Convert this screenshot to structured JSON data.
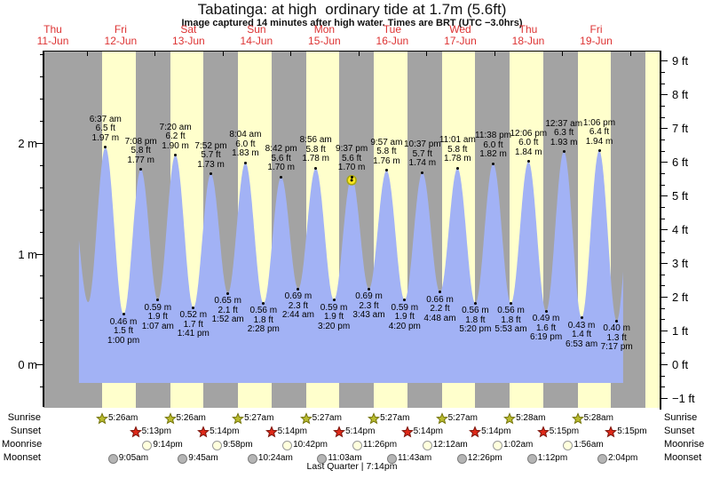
{
  "chart_data": {
    "type": "area",
    "title": "Tabatinga: at high  ordinary tide at 1.7m (5.6ft)",
    "subtitle": "Image captured 14 minutes after high water. Times are BRT (UTC −3.0hrs)",
    "xlabel": "",
    "ylabel_left": "m",
    "ylabel_right": "ft",
    "y_left_labels": [
      "0 m",
      "1 m",
      "2 m"
    ],
    "y_right_labels": [
      "−1 ft",
      "0 ft",
      "1 ft",
      "2 ft",
      "3 ft",
      "4 ft",
      "5 ft",
      "6 ft",
      "7 ft",
      "8 ft",
      "9 ft"
    ],
    "y_left_range_m": [
      -0.25,
      2.85
    ],
    "grid": "off",
    "legend": "none",
    "days": [
      {
        "weekday": "Thu",
        "date": "11-Jun"
      },
      {
        "weekday": "Fri",
        "date": "12-Jun"
      },
      {
        "weekday": "Sat",
        "date": "13-Jun"
      },
      {
        "weekday": "Sun",
        "date": "14-Jun"
      },
      {
        "weekday": "Mon",
        "date": "15-Jun"
      },
      {
        "weekday": "Tue",
        "date": "16-Jun"
      },
      {
        "weekday": "Wed",
        "date": "17-Jun"
      },
      {
        "weekday": "Thu",
        "date": "18-Jun"
      },
      {
        "weekday": "Fri",
        "date": "19-Jun"
      }
    ],
    "extremes": [
      {
        "type": "high",
        "day": 1,
        "time": "6:37 am",
        "ft": "6.5 ft",
        "m": "1.97 m"
      },
      {
        "type": "low",
        "day": 1,
        "time": "1:00 pm",
        "ft": "1.5 ft",
        "m": "0.46 m"
      },
      {
        "type": "high",
        "day": 1,
        "time": "7:08 pm",
        "ft": "5.8 ft",
        "m": "1.77 m"
      },
      {
        "type": "low",
        "day": 2,
        "time": "1:07 am",
        "ft": "1.9 ft",
        "m": "0.59 m"
      },
      {
        "type": "high",
        "day": 2,
        "time": "7:20 am",
        "ft": "6.2 ft",
        "m": "1.90 m"
      },
      {
        "type": "low",
        "day": 2,
        "time": "1:41 pm",
        "ft": "1.7 ft",
        "m": "0.52 m"
      },
      {
        "type": "high",
        "day": 2,
        "time": "7:52 pm",
        "ft": "5.7 ft",
        "m": "1.73 m"
      },
      {
        "type": "low",
        "day": 3,
        "time": "1:52 am",
        "ft": "2.1 ft",
        "m": "0.65 m"
      },
      {
        "type": "high",
        "day": 3,
        "time": "8:04 am",
        "ft": "6.0 ft",
        "m": "1.83 m"
      },
      {
        "type": "low",
        "day": 3,
        "time": "2:28 pm",
        "ft": "1.8 ft",
        "m": "0.56 m"
      },
      {
        "type": "high",
        "day": 3,
        "time": "8:42 pm",
        "ft": "5.6 ft",
        "m": "1.70 m"
      },
      {
        "type": "low",
        "day": 4,
        "time": "2:44 am",
        "ft": "2.3 ft",
        "m": "0.69 m"
      },
      {
        "type": "high",
        "day": 4,
        "time": "8:56 am",
        "ft": "5.8 ft",
        "m": "1.78 m"
      },
      {
        "type": "low",
        "day": 4,
        "time": "3:20 pm",
        "ft": "1.9 ft",
        "m": "0.59 m"
      },
      {
        "type": "high",
        "day": 4,
        "time": "9:37 pm",
        "ft": "5.6 ft",
        "m": "1.70 m",
        "current": true
      },
      {
        "type": "low",
        "day": 5,
        "time": "3:43 am",
        "ft": "2.3 ft",
        "m": "0.69 m"
      },
      {
        "type": "high",
        "day": 5,
        "time": "9:57 am",
        "ft": "5.8 ft",
        "m": "1.76 m"
      },
      {
        "type": "low",
        "day": 5,
        "time": "4:20 pm",
        "ft": "1.9 ft",
        "m": "0.59 m"
      },
      {
        "type": "high",
        "day": 5,
        "time": "10:37 pm",
        "ft": "5.7 ft",
        "m": "1.74 m"
      },
      {
        "type": "low",
        "day": 6,
        "time": "4:48 am",
        "ft": "2.2 ft",
        "m": "0.66 m"
      },
      {
        "type": "high",
        "day": 6,
        "time": "11:01 am",
        "ft": "5.8 ft",
        "m": "1.78 m"
      },
      {
        "type": "low",
        "day": 6,
        "time": "5:20 pm",
        "ft": "1.8 ft",
        "m": "0.56 m"
      },
      {
        "type": "high",
        "day": 6,
        "time": "11:38 pm",
        "ft": "6.0 ft",
        "m": "1.82 m"
      },
      {
        "type": "low",
        "day": 7,
        "time": "5:53 am",
        "ft": "1.8 ft",
        "m": "0.56 m"
      },
      {
        "type": "high",
        "day": 7,
        "time": "12:06 pm",
        "ft": "6.0 ft",
        "m": "1.84 m"
      },
      {
        "type": "low",
        "day": 7,
        "time": "6:19 pm",
        "ft": "1.6 ft",
        "m": "0.49 m"
      },
      {
        "type": "high",
        "day": 8,
        "time": "12:37 am",
        "ft": "6.3 ft",
        "m": "1.93 m"
      },
      {
        "type": "low",
        "day": 8,
        "time": "6:53 am",
        "ft": "1.4 ft",
        "m": "0.43 m"
      },
      {
        "type": "high",
        "day": 8,
        "time": "1:06 pm",
        "ft": "6.4 ft",
        "m": "1.94 m"
      },
      {
        "type": "low",
        "day": 8,
        "time": "7:17 pm",
        "ft": "1.3 ft",
        "m": "0.40 m"
      }
    ],
    "curve_padding_before": [
      {
        "day": 0,
        "time": "6:20 pm",
        "m": "1.60 m"
      },
      {
        "day": 1,
        "time": "12:30 am",
        "m": "0.57 m"
      }
    ],
    "curve_padding_after": [
      {
        "day": 9,
        "time": "1:35 am",
        "m": "1.95 m"
      }
    ],
    "current_position": {
      "extreme_index": 14,
      "description": "yellow marker on 9:37 pm 15-Jun high water"
    },
    "astro": {
      "rows": [
        {
          "label": "Sunrise",
          "icon": "sunrise-star",
          "events": [
            {
              "day": 1,
              "time": "5:26am"
            },
            {
              "day": 2,
              "time": "5:26am"
            },
            {
              "day": 3,
              "time": "5:27am"
            },
            {
              "day": 4,
              "time": "5:27am"
            },
            {
              "day": 5,
              "time": "5:27am"
            },
            {
              "day": 6,
              "time": "5:27am"
            },
            {
              "day": 7,
              "time": "5:28am"
            },
            {
              "day": 8,
              "time": "5:28am"
            }
          ]
        },
        {
          "label": "Sunset",
          "icon": "sunset-star",
          "events": [
            {
              "day": 1,
              "time": "5:13pm"
            },
            {
              "day": 2,
              "time": "5:14pm"
            },
            {
              "day": 3,
              "time": "5:14pm"
            },
            {
              "day": 4,
              "time": "5:14pm"
            },
            {
              "day": 5,
              "time": "5:14pm"
            },
            {
              "day": 6,
              "time": "5:14pm"
            },
            {
              "day": 7,
              "time": "5:15pm"
            },
            {
              "day": 8,
              "time": "5:15pm"
            }
          ]
        },
        {
          "label": "Moonrise",
          "icon": "moonrise-circle",
          "events": [
            {
              "day": 1,
              "time": "9:14pm"
            },
            {
              "day": 2,
              "time": "9:58pm"
            },
            {
              "day": 3,
              "time": "10:42pm"
            },
            {
              "day": 4,
              "time": "11:26pm"
            },
            {
              "day": 6,
              "time": "12:12am"
            },
            {
              "day": 7,
              "time": "1:02am"
            },
            {
              "day": 8,
              "time": "1:56am"
            }
          ]
        },
        {
          "label": "Moonset",
          "icon": "moonset-circle",
          "events": [
            {
              "day": 1,
              "time": "9:05am"
            },
            {
              "day": 2,
              "time": "9:45am"
            },
            {
              "day": 3,
              "time": "10:24am"
            },
            {
              "day": 4,
              "time": "11:03am"
            },
            {
              "day": 5,
              "time": "11:43am"
            },
            {
              "day": 6,
              "time": "12:26pm"
            },
            {
              "day": 7,
              "time": "1:12pm"
            },
            {
              "day": 8,
              "time": "2:04pm"
            }
          ]
        }
      ],
      "footer": "Last Quarter | 7:14pm",
      "next_day_sunrise": {
        "day": 9,
        "time": "5:28am"
      }
    },
    "colors": {
      "night_background": "#a3a3a3",
      "daylight_band": "#ffffcc",
      "tide_fill": "#a2b2f5",
      "day_label_red": "#dd3333",
      "marker_yellow_fill": "#ffe820",
      "marker_yellow_stroke": "#a8a810",
      "sunrise_star_fill": "#b9bb30",
      "sunrise_star_stroke": "#73730a",
      "sunset_star_fill": "#dd2818",
      "sunset_star_stroke": "#7a150c",
      "moonrise_fill": "#ffffdd",
      "moonrise_stroke": "#999999",
      "moonset_fill": "#b5b5b5",
      "moonset_stroke": "#7d7d7d"
    }
  }
}
